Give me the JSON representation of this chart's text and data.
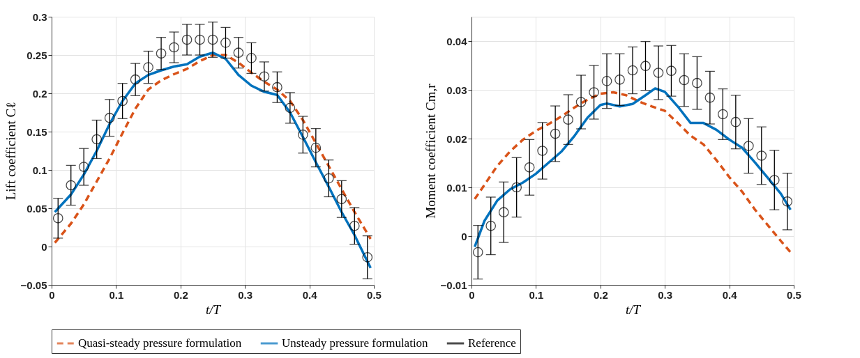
{
  "chart_data": [
    {
      "type": "line",
      "xlabel": "t/T",
      "ylabel": "Lift coefficient Cℓ",
      "xlim": [
        0,
        0.5
      ],
      "xticks": [
        0,
        0.1,
        0.2,
        0.3,
        0.4,
        0.5
      ],
      "ylim": [
        -0.05,
        0.3
      ],
      "yticks": [
        -0.05,
        0,
        0.05,
        0.1,
        0.15,
        0.2,
        0.25,
        0.3
      ],
      "grid": true,
      "legend": "bottom",
      "series": [
        {
          "name": "Quasi-steady pressure formulation",
          "type": "line",
          "line_style": "dashed",
          "marker": "none",
          "color": "#d95319",
          "x": [
            0.005,
            0.03,
            0.05,
            0.07,
            0.09,
            0.11,
            0.13,
            0.15,
            0.17,
            0.19,
            0.21,
            0.23,
            0.25,
            0.27,
            0.29,
            0.31,
            0.33,
            0.35,
            0.37,
            0.39,
            0.41,
            0.43,
            0.45,
            0.47,
            0.495
          ],
          "values": [
            0.005,
            0.03,
            0.055,
            0.085,
            0.115,
            0.148,
            0.18,
            0.205,
            0.217,
            0.225,
            0.232,
            0.242,
            0.25,
            0.25,
            0.24,
            0.227,
            0.215,
            0.205,
            0.19,
            0.165,
            0.135,
            0.105,
            0.075,
            0.045,
            0.01
          ]
        },
        {
          "name": "Unsteady pressure formulation",
          "type": "line",
          "line_style": "solid",
          "marker": "none",
          "color": "#0072bd",
          "x": [
            0.005,
            0.03,
            0.05,
            0.07,
            0.09,
            0.11,
            0.13,
            0.15,
            0.17,
            0.19,
            0.21,
            0.23,
            0.25,
            0.27,
            0.29,
            0.31,
            0.33,
            0.35,
            0.37,
            0.39,
            0.41,
            0.43,
            0.45,
            0.47,
            0.495
          ],
          "values": [
            0.045,
            0.068,
            0.094,
            0.125,
            0.16,
            0.19,
            0.213,
            0.224,
            0.23,
            0.235,
            0.238,
            0.248,
            0.253,
            0.245,
            0.224,
            0.21,
            0.202,
            0.198,
            0.175,
            0.143,
            0.11,
            0.078,
            0.045,
            0.015,
            -0.028
          ]
        },
        {
          "name": "Reference",
          "type": "scatter",
          "marker": "circle",
          "color": "#000000",
          "x": [
            0.01,
            0.03,
            0.05,
            0.07,
            0.09,
            0.11,
            0.13,
            0.15,
            0.17,
            0.19,
            0.21,
            0.23,
            0.25,
            0.27,
            0.29,
            0.31,
            0.33,
            0.35,
            0.37,
            0.39,
            0.41,
            0.43,
            0.45,
            0.47,
            0.49
          ],
          "values": [
            0.037,
            0.08,
            0.104,
            0.14,
            0.168,
            0.19,
            0.218,
            0.234,
            0.252,
            0.26,
            0.27,
            0.27,
            0.27,
            0.266,
            0.253,
            0.246,
            0.222,
            0.208,
            0.181,
            0.146,
            0.129,
            0.089,
            0.062,
            0.027,
            -0.014
          ],
          "errors": [
            0.026,
            0.026,
            0.024,
            0.025,
            0.024,
            0.023,
            0.021,
            0.021,
            0.021,
            0.02,
            0.02,
            0.02,
            0.023,
            0.02,
            0.02,
            0.02,
            0.019,
            0.02,
            0.02,
            0.024,
            0.025,
            0.024,
            0.024,
            0.024,
            0.028
          ]
        }
      ]
    },
    {
      "type": "line",
      "xlabel": "t/T",
      "ylabel": "Moment coefficient Cm,r",
      "xlim": [
        0,
        0.5
      ],
      "xticks": [
        0,
        0.1,
        0.2,
        0.3,
        0.4,
        0.5
      ],
      "ylim": [
        -0.01,
        0.045
      ],
      "yticks": [
        -0.01,
        0,
        0.01,
        0.02,
        0.03,
        0.04
      ],
      "grid": true,
      "legend": "bottom",
      "series": [
        {
          "name": "Quasi-steady pressure formulation",
          "type": "line",
          "line_style": "dashed",
          "marker": "none",
          "color": "#d95319",
          "x": [
            0.005,
            0.02,
            0.04,
            0.06,
            0.08,
            0.1,
            0.12,
            0.14,
            0.16,
            0.18,
            0.2,
            0.22,
            0.24,
            0.26,
            0.28,
            0.3,
            0.32,
            0.34,
            0.36,
            0.38,
            0.4,
            0.42,
            0.44,
            0.46,
            0.48,
            0.495
          ],
          "values": [
            0.0076,
            0.0105,
            0.0144,
            0.0174,
            0.0198,
            0.0216,
            0.023,
            0.0246,
            0.0264,
            0.028,
            0.0292,
            0.0295,
            0.0289,
            0.0276,
            0.0266,
            0.0257,
            0.0232,
            0.0206,
            0.0188,
            0.0156,
            0.0121,
            0.0091,
            0.0054,
            0.0022,
            -0.001,
            -0.0033
          ]
        },
        {
          "name": "Unsteady pressure formulation",
          "type": "line",
          "line_style": "solid",
          "marker": "none",
          "color": "#0072bd",
          "x": [
            0.005,
            0.02,
            0.04,
            0.06,
            0.08,
            0.1,
            0.12,
            0.14,
            0.16,
            0.18,
            0.2,
            0.21,
            0.23,
            0.25,
            0.27,
            0.285,
            0.3,
            0.32,
            0.34,
            0.36,
            0.38,
            0.4,
            0.42,
            0.44,
            0.46,
            0.48,
            0.495
          ],
          "values": [
            -0.0022,
            0.0031,
            0.0073,
            0.0096,
            0.011,
            0.0128,
            0.0151,
            0.0174,
            0.0206,
            0.0243,
            0.0269,
            0.0272,
            0.0266,
            0.0271,
            0.0289,
            0.0303,
            0.0296,
            0.0266,
            0.0232,
            0.0232,
            0.0218,
            0.0198,
            0.0181,
            0.0151,
            0.0119,
            0.0087,
            0.0054
          ]
        },
        {
          "name": "Reference",
          "type": "scatter",
          "marker": "circle",
          "color": "#000000",
          "x": [
            0.01,
            0.03,
            0.05,
            0.07,
            0.09,
            0.11,
            0.13,
            0.15,
            0.17,
            0.19,
            0.21,
            0.23,
            0.25,
            0.27,
            0.29,
            0.31,
            0.33,
            0.35,
            0.37,
            0.39,
            0.41,
            0.43,
            0.45,
            0.47,
            0.49
          ],
          "values": [
            -0.0033,
            0.0021,
            0.0049,
            0.01,
            0.0141,
            0.0175,
            0.021,
            0.0239,
            0.0275,
            0.0295,
            0.0318,
            0.0321,
            0.034,
            0.0349,
            0.0335,
            0.0339,
            0.032,
            0.0314,
            0.0284,
            0.025,
            0.0234,
            0.0185,
            0.0165,
            0.0115,
            0.0071
          ],
          "errors": [
            0.0055,
            0.0059,
            0.0062,
            0.0061,
            0.0057,
            0.0058,
            0.0057,
            0.0051,
            0.0055,
            0.0055,
            0.0056,
            0.0053,
            0.0048,
            0.005,
            0.0055,
            0.0052,
            0.0054,
            0.0054,
            0.0054,
            0.0052,
            0.0055,
            0.0056,
            0.0059,
            0.0061,
            0.0058
          ]
        }
      ]
    }
  ]
}
